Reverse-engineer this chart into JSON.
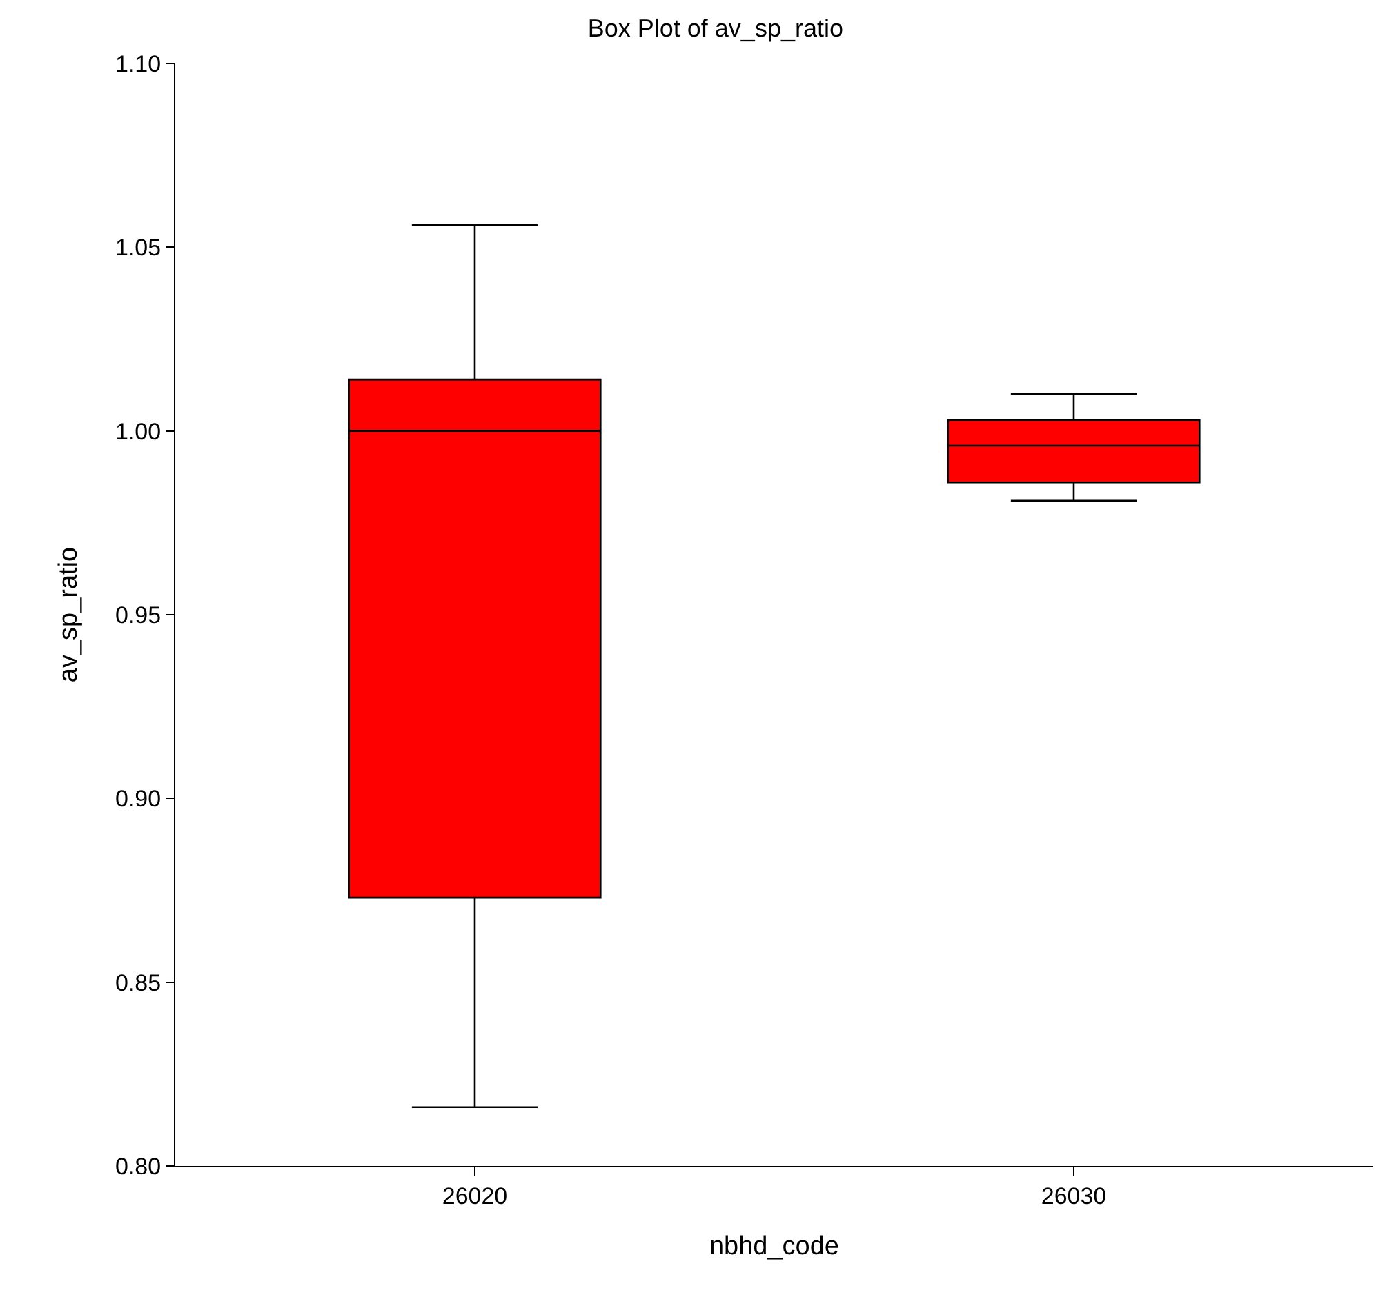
{
  "chart_data": {
    "type": "box",
    "title": "Box Plot of av_sp_ratio",
    "xlabel": "nbhd_code",
    "ylabel": "av_sp_ratio",
    "categories": [
      "26020",
      "26030"
    ],
    "color": "#ff0000",
    "boxes": [
      {
        "low": 0.816,
        "q1": 0.873,
        "median": 1.0,
        "q3": 1.014,
        "high": 1.056
      },
      {
        "low": 0.981,
        "q1": 0.986,
        "median": 0.996,
        "q3": 1.003,
        "high": 1.01
      }
    ],
    "ylim": [
      0.8,
      1.1
    ],
    "yticks": [
      {
        "value": 0.8,
        "label": "0.80"
      },
      {
        "value": 0.85,
        "label": "0.85"
      },
      {
        "value": 0.9,
        "label": "0.90"
      },
      {
        "value": 0.95,
        "label": "0.95"
      },
      {
        "value": 1.0,
        "label": "1.00"
      },
      {
        "value": 1.05,
        "label": "1.05"
      },
      {
        "value": 1.1,
        "label": "1.10"
      }
    ],
    "grid": false
  }
}
